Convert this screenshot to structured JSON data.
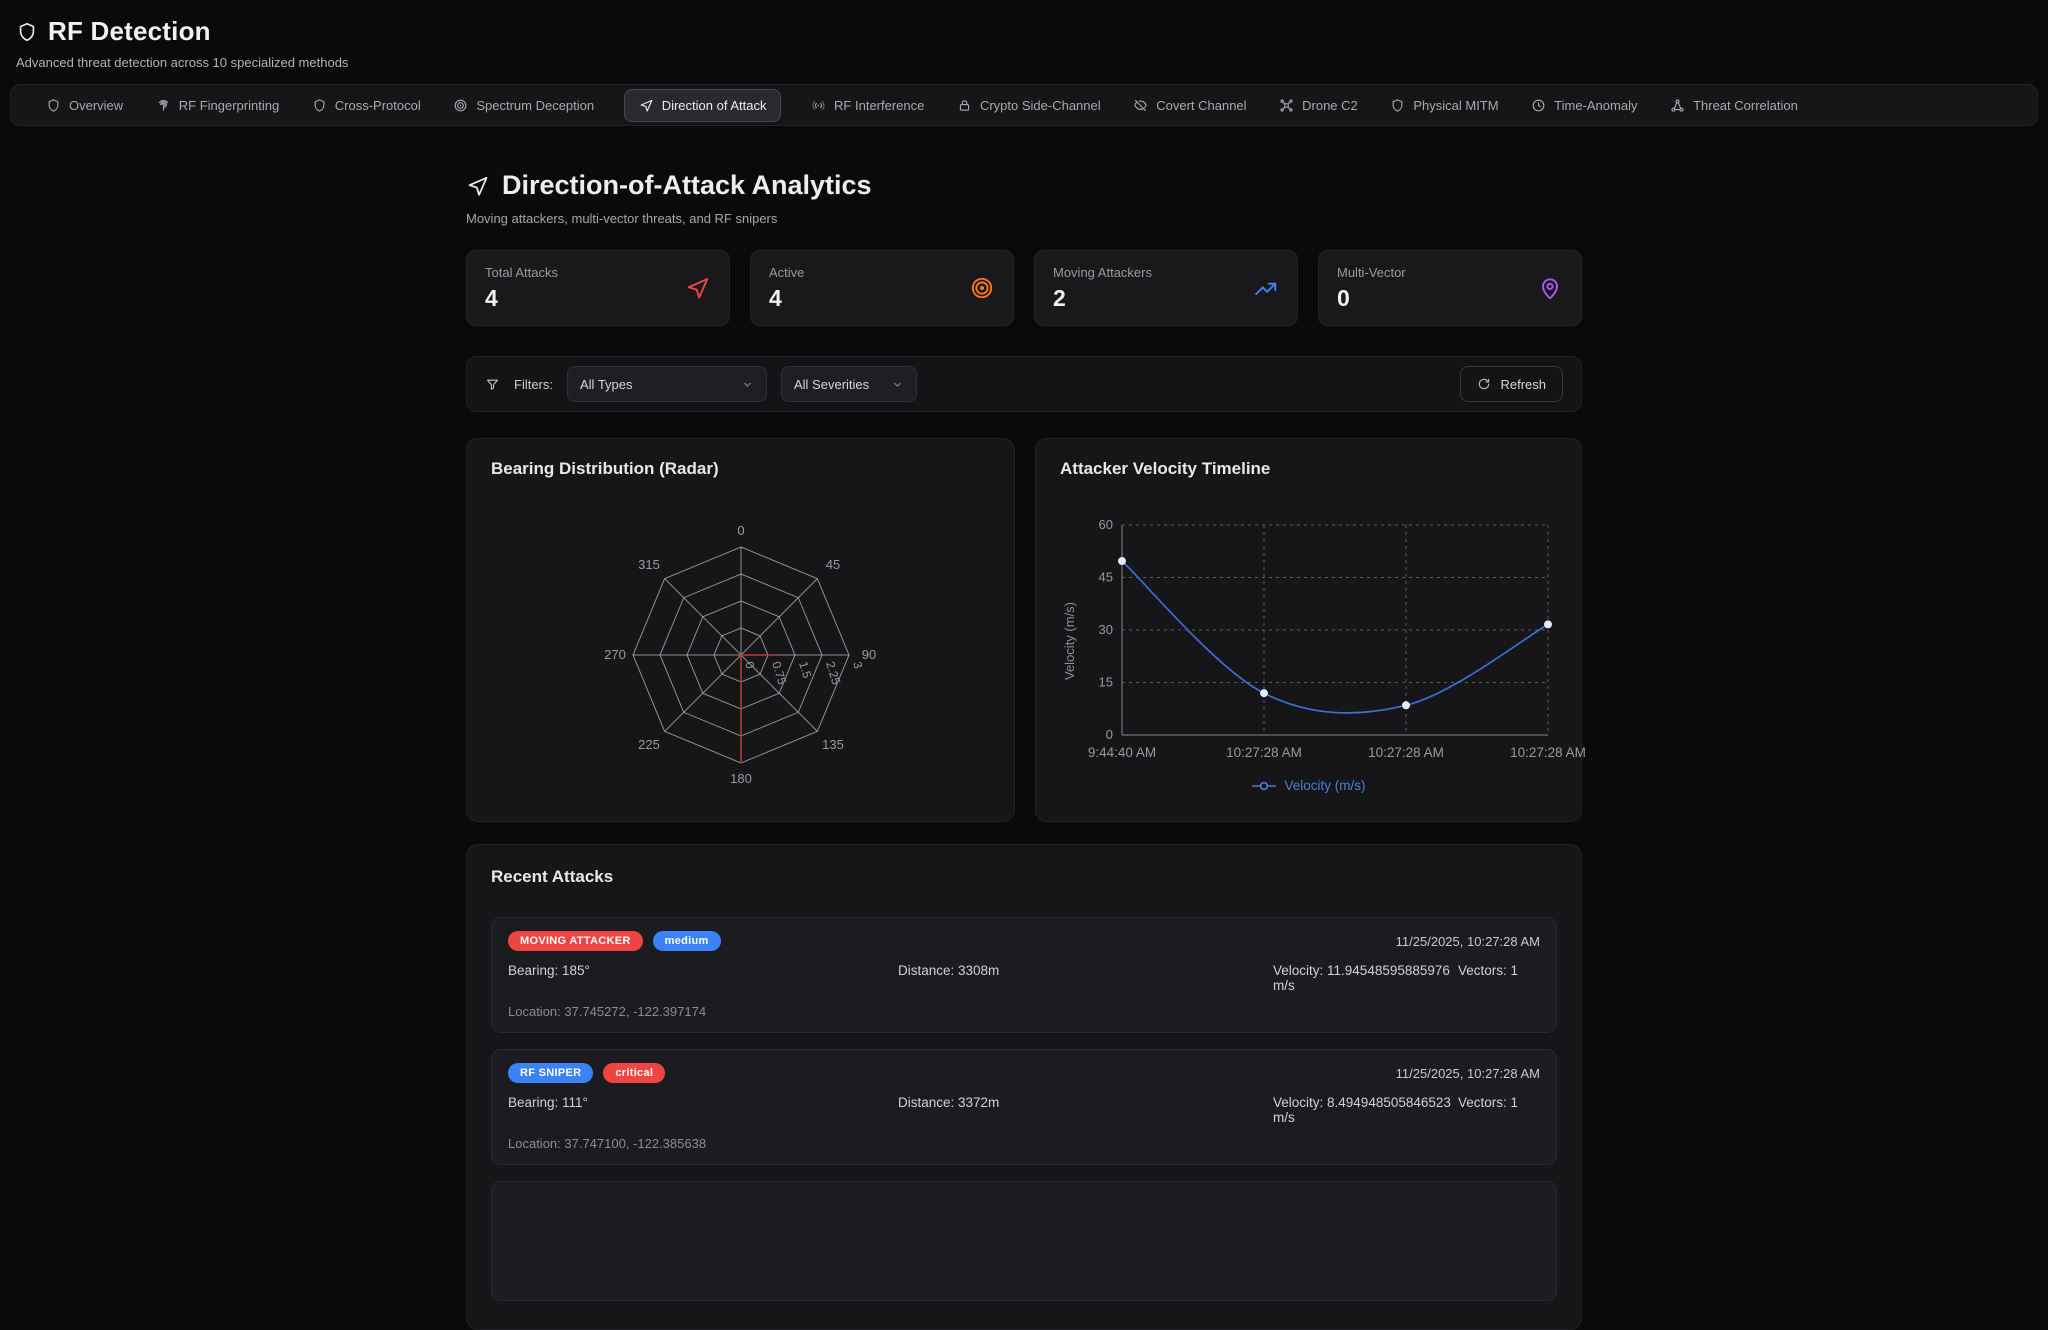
{
  "header": {
    "title": "RF Detection",
    "subtitle": "Advanced threat detection across 10 specialized methods"
  },
  "nav": {
    "tabs": [
      {
        "label": "Overview",
        "icon": "shield",
        "active": false
      },
      {
        "label": "RF Fingerprinting",
        "icon": "fingerprint",
        "active": false
      },
      {
        "label": "Cross-Protocol",
        "icon": "shield",
        "active": false
      },
      {
        "label": "Spectrum Deception",
        "icon": "target",
        "active": false
      },
      {
        "label": "Direction of Attack",
        "icon": "navigation",
        "active": true
      },
      {
        "label": "RF Interference",
        "icon": "radio",
        "active": false
      },
      {
        "label": "Crypto Side-Channel",
        "icon": "lock",
        "active": false
      },
      {
        "label": "Covert Channel",
        "icon": "eye-off",
        "active": false
      },
      {
        "label": "Drone C2",
        "icon": "drone",
        "active": false
      },
      {
        "label": "Physical MITM",
        "icon": "shield",
        "active": false
      },
      {
        "label": "Time-Anomaly",
        "icon": "clock",
        "active": false
      },
      {
        "label": "Threat Correlation",
        "icon": "network",
        "active": false
      }
    ]
  },
  "page": {
    "title": "Direction-of-Attack Analytics",
    "subtitle": "Moving attackers, multi-vector threats, and RF snipers"
  },
  "stats": [
    {
      "label": "Total Attacks",
      "value": "4",
      "icon": "navigation",
      "color": "#ef4444"
    },
    {
      "label": "Active",
      "value": "4",
      "icon": "concentric-target",
      "color": "#f97316"
    },
    {
      "label": "Moving Attackers",
      "value": "2",
      "icon": "trending-up",
      "color": "#3b82f6"
    },
    {
      "label": "Multi-Vector",
      "value": "0",
      "icon": "map-pin",
      "color": "#a855f7"
    }
  ],
  "filters": {
    "label": "Filters:",
    "type_select": "All Types",
    "severity_select": "All Severities",
    "refresh_label": "Refresh"
  },
  "panels": {
    "radar_title": "Bearing Distribution (Radar)",
    "timeline_title": "Attacker Velocity Timeline",
    "attacks_title": "Recent Attacks"
  },
  "chart_data": [
    {
      "type": "radar",
      "title": "Bearing Distribution (Radar)",
      "categories": [
        "0",
        "45",
        "90",
        "135",
        "180",
        "225",
        "270",
        "315"
      ],
      "values": [
        0,
        0,
        1,
        0,
        3,
        0,
        0,
        0
      ],
      "radial_ticks": [
        "0",
        "0.75",
        "1.5",
        "2.25",
        "3"
      ],
      "max": 3,
      "series_color": "#b23b3b",
      "grid_color": "#aeaeb2"
    },
    {
      "type": "line",
      "title": "Attacker Velocity Timeline",
      "x": [
        "9:44:40 AM",
        "10:27:28 AM",
        "10:27:28 AM",
        "10:27:28 AM"
      ],
      "values": [
        49.7,
        11.95,
        8.49,
        31.6
      ],
      "ylabel": "Velocity (m/s)",
      "yticks": [
        0,
        15,
        30,
        45,
        60
      ],
      "ylim": [
        0,
        60
      ],
      "legend": "Velocity (m/s)",
      "line_color": "#3b6fd4",
      "dot_color": "#e2eafb",
      "grid": "dashed",
      "legend_position": "bottom"
    }
  ],
  "attacks": [
    {
      "type_badge": "MOVING ATTACKER",
      "type_color": "#ef4444",
      "severity_badge": "medium",
      "severity_color": "#3b82f6",
      "timestamp": "11/25/2025, 10:27:28 AM",
      "bearing": "Bearing: 185°",
      "distance": "Distance: 3308m",
      "velocity": "Velocity: 11.94548595885976 m/s",
      "vectors": "Vectors: 1",
      "location": "Location: 37.745272, -122.397174"
    },
    {
      "type_badge": "RF SNIPER",
      "type_color": "#3b82f6",
      "severity_badge": "critical",
      "severity_color": "#ef4444",
      "timestamp": "11/25/2025, 10:27:28 AM",
      "bearing": "Bearing: 111°",
      "distance": "Distance: 3372m",
      "velocity": "Velocity: 8.494948505846523 m/s",
      "vectors": "Vectors: 1",
      "location": "Location: 37.747100, -122.385638"
    }
  ]
}
